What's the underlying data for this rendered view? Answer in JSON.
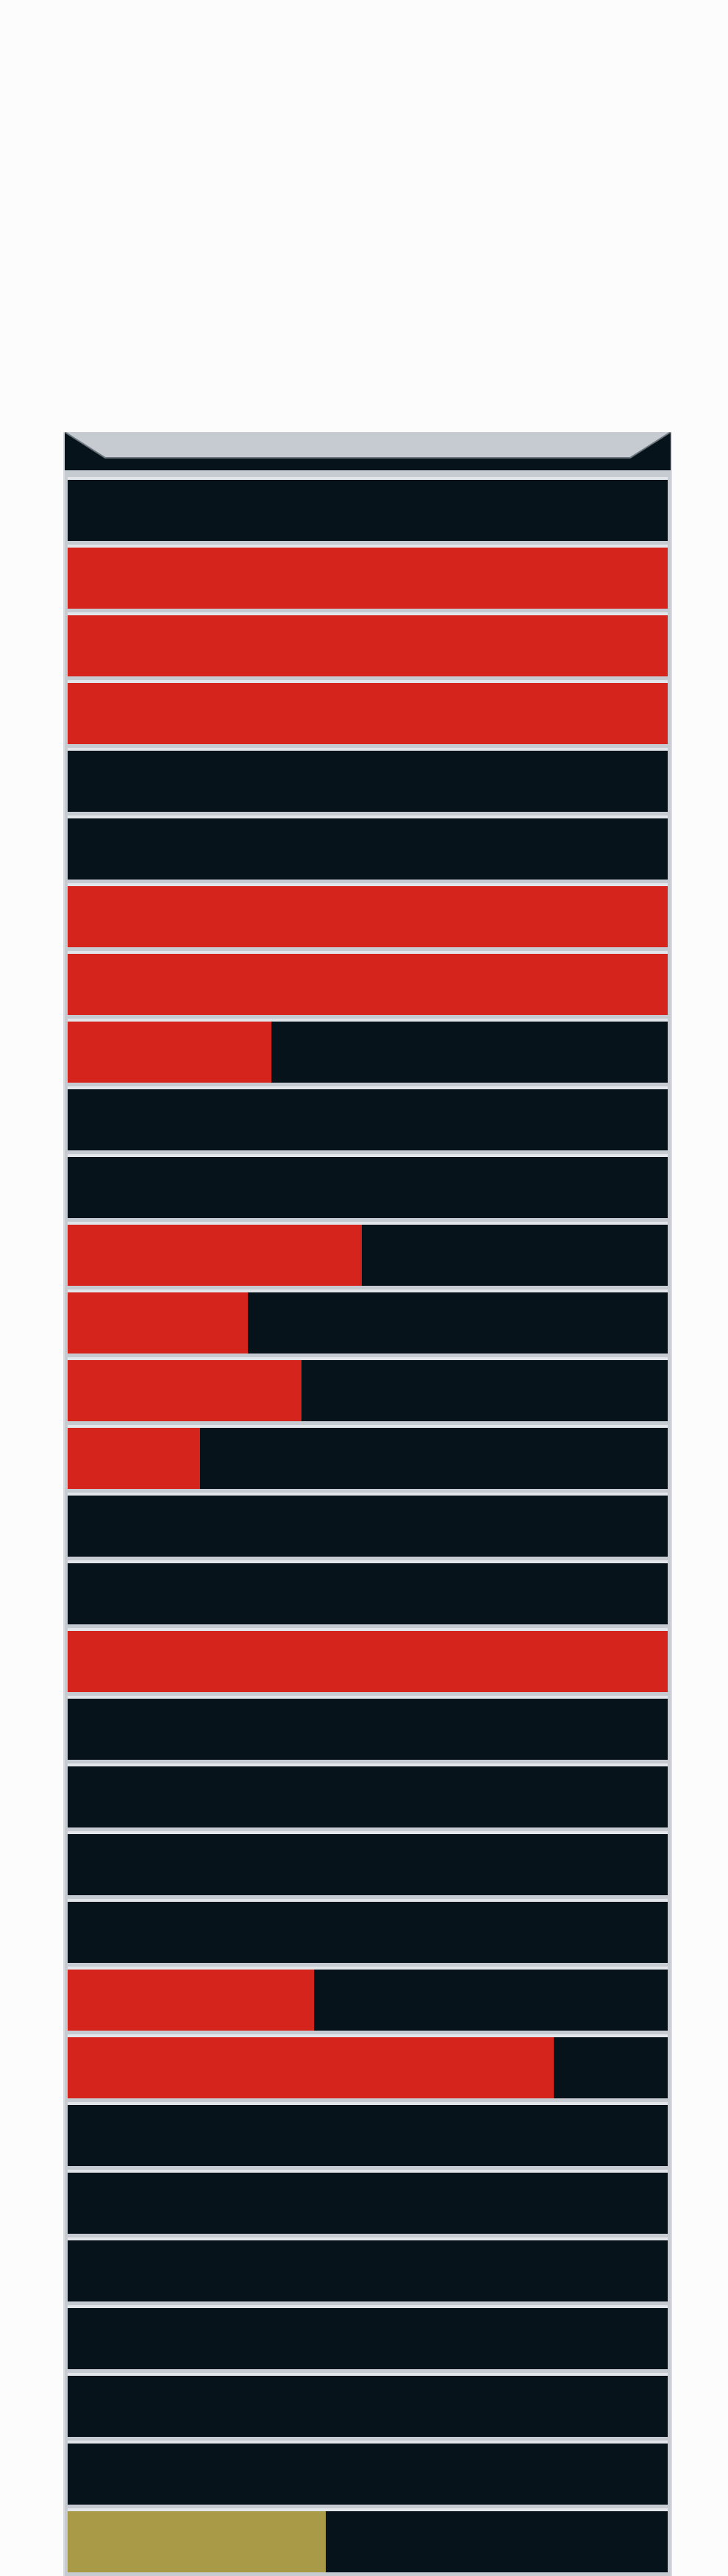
{
  "colors": {
    "background": "#fcfcfd",
    "panel": "#07131a",
    "divider": "#e2e5ea",
    "fill_red": "#d5241b",
    "fill_gold": "#a89a46"
  },
  "bars": [
    {
      "fill": 0.0,
      "color": "red"
    },
    {
      "fill": 1.0,
      "color": "red"
    },
    {
      "fill": 1.0,
      "color": "red"
    },
    {
      "fill": 1.0,
      "color": "red"
    },
    {
      "fill": 0.0,
      "color": "red"
    },
    {
      "fill": 0.0,
      "color": "red"
    },
    {
      "fill": 1.0,
      "color": "red"
    },
    {
      "fill": 1.0,
      "color": "red"
    },
    {
      "fill": 0.34,
      "color": "red"
    },
    {
      "fill": 0.0,
      "color": "red"
    },
    {
      "fill": 0.0,
      "color": "red"
    },
    {
      "fill": 0.49,
      "color": "red"
    },
    {
      "fill": 0.3,
      "color": "red"
    },
    {
      "fill": 0.39,
      "color": "red"
    },
    {
      "fill": 0.22,
      "color": "red"
    },
    {
      "fill": 0.0,
      "color": "red"
    },
    {
      "fill": 0.0,
      "color": "red"
    },
    {
      "fill": 1.0,
      "color": "red"
    },
    {
      "fill": 0.0,
      "color": "red"
    },
    {
      "fill": 0.0,
      "color": "red"
    },
    {
      "fill": 0.0,
      "color": "red"
    },
    {
      "fill": 0.0,
      "color": "red"
    },
    {
      "fill": 0.41,
      "color": "red"
    },
    {
      "fill": 0.81,
      "color": "red"
    },
    {
      "fill": 0.0,
      "color": "red"
    },
    {
      "fill": 0.0,
      "color": "red"
    },
    {
      "fill": 0.0,
      "color": "red"
    },
    {
      "fill": 0.0,
      "color": "red"
    },
    {
      "fill": 0.0,
      "color": "red"
    },
    {
      "fill": 0.0,
      "color": "red"
    },
    {
      "fill": 0.43,
      "color": "gold"
    }
  ]
}
